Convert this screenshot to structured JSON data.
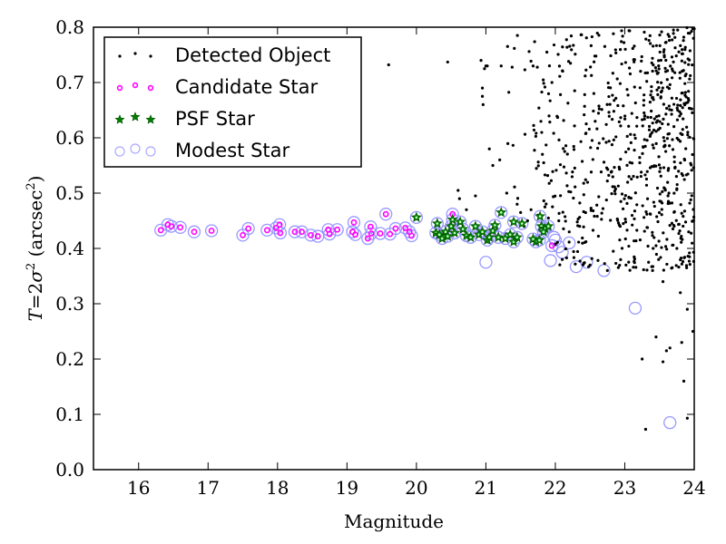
{
  "chart_data": {
    "type": "scatter",
    "title": "",
    "xlabel": "Magnitude",
    "ylabel": "T=2σ² (arcsec²)",
    "ylabel_parts": {
      "var": "T",
      "eq": "=2",
      "sigma": "σ",
      "sq": "2",
      "unit_open": " (arcsec",
      "unit_sq": "2",
      "unit_close": ")"
    },
    "xlim": [
      15.35,
      24.0
    ],
    "ylim": [
      0.0,
      0.8
    ],
    "xticks": [
      16,
      17,
      18,
      19,
      20,
      21,
      22,
      23,
      24
    ],
    "xtick_labels": [
      "16",
      "17",
      "18",
      "19",
      "20",
      "21",
      "22",
      "23",
      "24"
    ],
    "yticks": [
      0.0,
      0.1,
      0.2,
      0.3,
      0.4,
      0.5,
      0.6,
      0.7,
      0.8
    ],
    "ytick_labels": [
      "0.0",
      "0.1",
      "0.2",
      "0.3",
      "0.4",
      "0.5",
      "0.6",
      "0.7",
      "0.8"
    ],
    "grid": false,
    "legend_position": "top-left",
    "legend": [
      {
        "label": "Detected Object",
        "marker": "dot",
        "color": "#000000"
      },
      {
        "label": "Candidate Star",
        "marker": "ring",
        "color": "#ff00ff"
      },
      {
        "label": "PSF Star",
        "marker": "star",
        "color": "#008000"
      },
      {
        "label": "Modest Star",
        "marker": "open-circle",
        "color": "#aaaaff"
      }
    ],
    "colors": {
      "detected": "#000000",
      "candidate": "#ff00ff",
      "psf": "#008000",
      "modest": "#9999ff"
    },
    "series": [
      {
        "name": "Candidate Star",
        "points": [
          [
            16.32,
            0.433
          ],
          [
            16.42,
            0.443
          ],
          [
            16.47,
            0.44
          ],
          [
            16.6,
            0.438
          ],
          [
            16.8,
            0.43
          ],
          [
            17.05,
            0.432
          ],
          [
            17.5,
            0.424
          ],
          [
            17.58,
            0.436
          ],
          [
            17.85,
            0.433
          ],
          [
            17.98,
            0.437
          ],
          [
            18.03,
            0.443
          ],
          [
            18.04,
            0.428
          ],
          [
            18.25,
            0.43
          ],
          [
            18.35,
            0.43
          ],
          [
            18.48,
            0.424
          ],
          [
            18.58,
            0.422
          ],
          [
            18.73,
            0.434
          ],
          [
            18.75,
            0.426
          ],
          [
            18.86,
            0.434
          ],
          [
            19.1,
            0.447
          ],
          [
            19.08,
            0.43
          ],
          [
            19.12,
            0.425
          ],
          [
            19.3,
            0.418
          ],
          [
            19.35,
            0.427
          ],
          [
            19.34,
            0.439
          ],
          [
            19.48,
            0.427
          ],
          [
            19.56,
            0.462
          ],
          [
            19.62,
            0.426
          ],
          [
            19.7,
            0.436
          ],
          [
            19.84,
            0.437
          ],
          [
            19.9,
            0.43
          ],
          [
            19.93,
            0.423
          ],
          [
            20.52,
            0.462
          ],
          [
            21.95,
            0.405
          ]
        ]
      },
      {
        "name": "PSF Star",
        "points": [
          [
            20.0,
            0.456
          ],
          [
            20.28,
            0.428
          ],
          [
            20.3,
            0.445
          ],
          [
            20.33,
            0.425
          ],
          [
            20.37,
            0.418
          ],
          [
            20.42,
            0.43
          ],
          [
            20.45,
            0.422
          ],
          [
            20.5,
            0.44
          ],
          [
            20.52,
            0.452
          ],
          [
            20.55,
            0.428
          ],
          [
            20.63,
            0.448
          ],
          [
            20.67,
            0.435
          ],
          [
            20.72,
            0.423
          ],
          [
            20.78,
            0.42
          ],
          [
            20.85,
            0.44
          ],
          [
            20.9,
            0.425
          ],
          [
            20.95,
            0.43
          ],
          [
            21.02,
            0.415
          ],
          [
            21.05,
            0.42
          ],
          [
            21.1,
            0.432
          ],
          [
            21.13,
            0.442
          ],
          [
            21.18,
            0.42
          ],
          [
            21.22,
            0.465
          ],
          [
            21.28,
            0.418
          ],
          [
            21.35,
            0.425
          ],
          [
            21.4,
            0.412
          ],
          [
            21.45,
            0.42
          ],
          [
            21.4,
            0.448
          ],
          [
            21.52,
            0.445
          ],
          [
            21.72,
            0.412
          ],
          [
            21.77,
            0.415
          ],
          [
            21.78,
            0.458
          ],
          [
            21.8,
            0.44
          ],
          [
            21.85,
            0.436
          ],
          [
            21.9,
            0.44
          ],
          [
            21.83,
            0.43
          ],
          [
            21.68,
            0.417
          ]
        ]
      },
      {
        "name": "Modest Star",
        "points": [
          [
            21.0,
            0.375
          ],
          [
            21.93,
            0.378
          ],
          [
            22.1,
            0.393
          ],
          [
            22.3,
            0.367
          ],
          [
            22.45,
            0.375
          ],
          [
            22.7,
            0.36
          ],
          [
            23.15,
            0.292
          ],
          [
            23.65,
            0.085
          ],
          [
            22.0,
            0.415
          ],
          [
            22.05,
            0.403
          ],
          [
            22.2,
            0.41
          ],
          [
            21.98,
            0.42
          ]
        ]
      },
      {
        "name": "Detected Object",
        "points": [
          [
            19.6,
            0.732
          ],
          [
            20.45,
            0.737
          ],
          [
            20.93,
            0.74
          ],
          [
            20.98,
            0.725
          ],
          [
            21.02,
            0.73
          ],
          [
            20.95,
            0.69
          ],
          [
            20.95,
            0.675
          ],
          [
            20.96,
            0.66
          ],
          [
            21.0,
            0.73
          ],
          [
            21.22,
            0.73
          ],
          [
            21.05,
            0.58
          ],
          [
            21.1,
            0.55
          ],
          [
            21.2,
            0.56
          ],
          [
            21.3,
            0.5
          ],
          [
            20.6,
            0.505
          ],
          [
            20.62,
            0.49
          ],
          [
            20.85,
            0.495
          ],
          [
            20.72,
            0.47
          ],
          [
            21.45,
            0.48
          ],
          [
            21.5,
            0.465
          ],
          [
            21.55,
            0.44
          ],
          [
            21.6,
            0.45
          ],
          [
            21.65,
            0.47
          ],
          [
            21.75,
            0.46
          ],
          [
            21.85,
            0.475
          ],
          [
            21.9,
            0.455
          ],
          [
            22.05,
            0.45
          ],
          [
            22.2,
            0.43
          ],
          [
            22.35,
            0.44
          ],
          [
            22.1,
            0.38
          ],
          [
            22.5,
            0.37
          ],
          [
            22.75,
            0.36
          ],
          [
            23.4,
            0.36
          ],
          [
            23.55,
            0.34
          ],
          [
            23.75,
            0.4
          ],
          [
            23.8,
            0.32
          ],
          [
            23.9,
            0.29
          ],
          [
            23.82,
            0.23
          ],
          [
            23.6,
            0.215
          ],
          [
            23.45,
            0.24
          ],
          [
            23.25,
            0.2
          ],
          [
            23.65,
            0.22
          ],
          [
            23.55,
            0.195
          ],
          [
            23.3,
            0.073
          ],
          [
            23.9,
            0.093
          ],
          [
            23.98,
            0.25
          ],
          [
            23.85,
            0.16
          ]
        ]
      }
    ],
    "detected_object_note": "Dense cloud of ~700 black dots spanning magnitude ~21-24 and T ~0.35-0.8, increasing in density toward fainter magnitudes"
  }
}
